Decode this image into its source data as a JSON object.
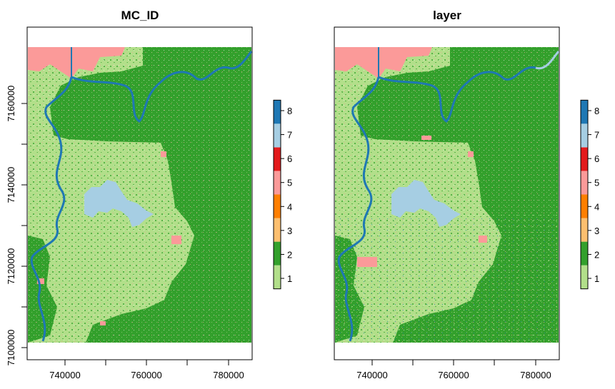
{
  "panels": [
    {
      "title": "MC_ID",
      "x_ticks": [
        "740000",
        "760000",
        "780000"
      ],
      "y_ticks": [
        "7100000",
        "7120000",
        "7140000",
        "7160000"
      ]
    },
    {
      "title": "layer",
      "x_ticks": [
        "740000",
        "760000",
        "780000"
      ],
      "y_ticks": []
    }
  ],
  "legend": {
    "classes": [
      {
        "value": "1",
        "color": "#b2df8a"
      },
      {
        "value": "2",
        "color": "#33a02c"
      },
      {
        "value": "3",
        "color": "#fdbf6f"
      },
      {
        "value": "4",
        "color": "#ff7f00"
      },
      {
        "value": "5",
        "color": "#fb9a99"
      },
      {
        "value": "6",
        "color": "#e31a1c"
      },
      {
        "value": "7",
        "color": "#a6cee3"
      },
      {
        "value": "8",
        "color": "#1f78b4"
      }
    ]
  }
}
